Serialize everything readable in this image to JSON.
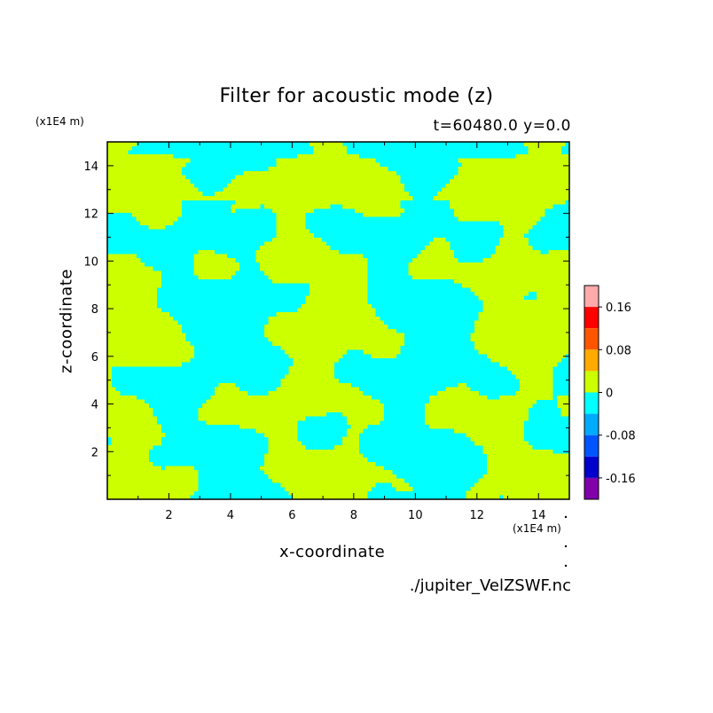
{
  "chart_data": {
    "type": "heatmap",
    "title": "Filter for acoustic mode (z)",
    "subtitle": "t=60480.0 y=0.0",
    "xlabel": "x-coordinate",
    "ylabel": "z-coordinate",
    "x_multiplier": "(x1E4 m)",
    "y_multiplier": "(x1E4 m)",
    "xlim": [
      0.0,
      15.0
    ],
    "ylim": [
      0.0,
      15.0
    ],
    "x_ticks": [
      "2",
      "4",
      "6",
      "8",
      "10",
      "12",
      "14"
    ],
    "y_ticks": [
      "2",
      "4",
      "6",
      "8",
      "10",
      "12",
      "14"
    ],
    "field_levels": [
      {
        "from": -0.04,
        "to": 0.0,
        "color": "#00ffff"
      },
      {
        "from": 0.0,
        "to": 0.04,
        "color": "#ccff00"
      }
    ],
    "colorbar": {
      "tick_labels": [
        "0.16",
        "0.08",
        "0",
        "-0.08",
        "-0.16"
      ],
      "tick_values": [
        0.16,
        0.08,
        0.0,
        -0.08,
        -0.16
      ],
      "range": [
        -0.2,
        0.2
      ],
      "bins": [
        {
          "from": 0.16,
          "to": 0.2,
          "color": "#ffaaaa"
        },
        {
          "from": 0.12,
          "to": 0.16,
          "color": "#ff0000"
        },
        {
          "from": 0.08,
          "to": 0.12,
          "color": "#ff5500"
        },
        {
          "from": 0.04,
          "to": 0.08,
          "color": "#ffaa00"
        },
        {
          "from": 0.0,
          "to": 0.04,
          "color": "#ccff00"
        },
        {
          "from": -0.04,
          "to": 0.0,
          "color": "#00ffff"
        },
        {
          "from": -0.08,
          "to": -0.04,
          "color": "#00aaff"
        },
        {
          "from": -0.12,
          "to": -0.08,
          "color": "#0055ff"
        },
        {
          "from": -0.16,
          "to": -0.12,
          "color": "#0000cc"
        },
        {
          "from": -0.2,
          "to": -0.16,
          "color": "#8000aa"
        }
      ]
    }
  },
  "source_file": "./jupiter_VelZSWF.nc"
}
